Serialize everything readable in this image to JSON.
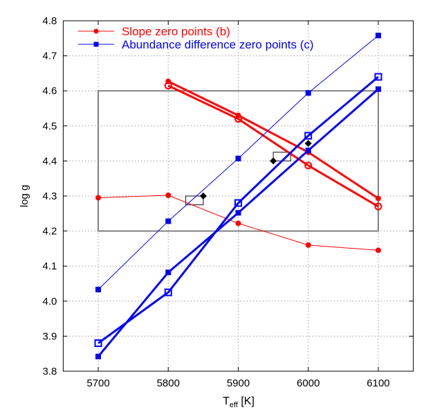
{
  "chart_data": {
    "type": "line",
    "xlabel": "T",
    "xlabel_sub": "eff",
    "xlabel_unit": " [K]",
    "ylabel": "log g",
    "xlim": [
      5650,
      6150
    ],
    "ylim": [
      3.8,
      4.8
    ],
    "xticks": [
      5700,
      5800,
      5900,
      6000,
      6100
    ],
    "yticks": [
      3.8,
      3.9,
      4.0,
      4.1,
      4.2,
      4.3,
      4.4,
      4.5,
      4.6,
      4.7,
      4.8
    ],
    "grid": true,
    "legend_placement": "top-left",
    "series": [
      {
        "name": "Slope zero points (b)",
        "color": "#ff0000",
        "marker": "filled-circle",
        "width": "thin",
        "x": [
          5700,
          5800,
          5900,
          6000,
          6100
        ],
        "y": [
          4.295,
          4.302,
          4.222,
          4.16,
          4.145
        ]
      },
      {
        "color": "#ff0000",
        "marker": "filled-circle",
        "width": "thick",
        "x": [
          5800,
          5900,
          6000,
          6100
        ],
        "y": [
          4.627,
          4.53,
          4.425,
          4.293
        ]
      },
      {
        "color": "#ff0000",
        "marker": "open-circle",
        "width": "thick",
        "x": [
          5800,
          5900,
          6000,
          6100
        ],
        "y": [
          4.615,
          4.52,
          4.387,
          4.27
        ]
      },
      {
        "name": "Abundance difference zero points (c)",
        "color": "#0000ff",
        "marker": "filled-square",
        "width": "thin",
        "x": [
          5700,
          5800,
          5900,
          6000,
          6100
        ],
        "y": [
          4.033,
          4.228,
          4.407,
          4.594,
          4.758
        ]
      },
      {
        "color": "#0000ff",
        "marker": "filled-square",
        "width": "thick",
        "x": [
          5700,
          5800,
          5900,
          6000,
          6100
        ],
        "y": [
          3.842,
          4.082,
          4.252,
          4.43,
          4.605
        ]
      },
      {
        "color": "#0000ff",
        "marker": "open-square",
        "width": "thick",
        "x": [
          5700,
          5800,
          5900,
          6000,
          6100
        ],
        "y": [
          3.88,
          4.025,
          4.28,
          4.472,
          4.64
        ]
      }
    ],
    "box": {
      "x": [
        5700,
        6100
      ],
      "y": [
        4.2,
        4.6
      ],
      "color": "#808080"
    },
    "small_boxes": [
      {
        "x": [
          5825,
          5850
        ],
        "y": [
          4.275,
          4.3
        ]
      },
      {
        "x": [
          5950,
          5975
        ],
        "y": [
          4.4,
          4.425
        ]
      }
    ],
    "diamonds": {
      "color": "#000000",
      "x": [
        5850,
        5950,
        6000
      ],
      "y": [
        4.3,
        4.4,
        4.45
      ]
    }
  }
}
